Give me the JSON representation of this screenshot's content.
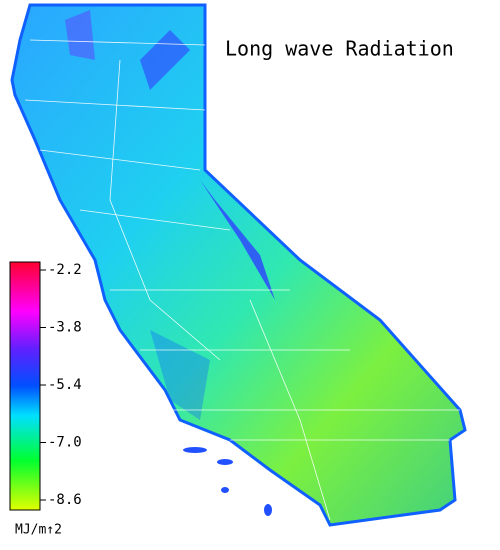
{
  "map": {
    "title": "Long wave Radiation",
    "colorbar": {
      "clim": [
        -2.2,
        -8.6
      ],
      "ticks": [
        -2.2,
        -3.8,
        -5.4,
        {
          "value": -7,
          "label": "-7.0"
        },
        -8.6
      ],
      "unit": "MJ/m↑2"
    }
  }
}
